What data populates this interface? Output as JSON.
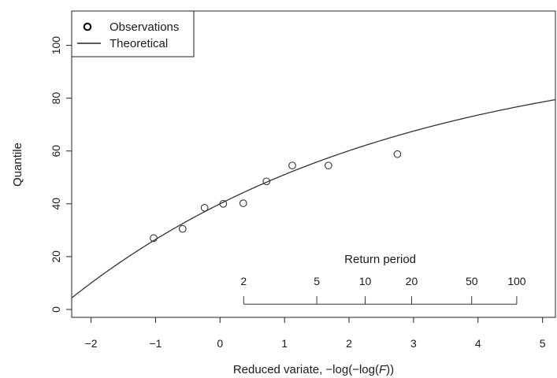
{
  "chart_data": {
    "type": "scatter",
    "xlabel_prefix": "Reduced variate,",
    "xlabel_math": "−log(−log(",
    "xlabel_var": "F",
    "xlabel_close": "))",
    "ylabel": "Quantile",
    "xlim": [
      -2.3,
      5.2
    ],
    "ylim": [
      -3,
      113
    ],
    "x_ticks": [
      -2,
      -1,
      0,
      1,
      2,
      3,
      4,
      5
    ],
    "x_tick_labels": [
      "−2",
      "−1",
      "0",
      "1",
      "2",
      "3",
      "4",
      "5"
    ],
    "y_ticks": [
      0,
      20,
      40,
      60,
      80,
      100
    ],
    "y_tick_labels": [
      "0",
      "20",
      "40",
      "60",
      "80",
      "100"
    ],
    "series": [
      {
        "name": "Observations",
        "kind": "points",
        "x": [
          -1.03,
          -0.58,
          -0.24,
          0.05,
          0.36,
          0.72,
          1.12,
          1.68,
          2.75
        ],
        "y": [
          27,
          30.5,
          38.5,
          40,
          40.2,
          48.5,
          54.5,
          54.5,
          58.8
        ]
      },
      {
        "name": "Theoretical",
        "kind": "curve",
        "model": "GEV quantile",
        "params": {
          "mu": 40.0,
          "sigma": 12.2,
          "xi": -0.2
        }
      }
    ],
    "legend": {
      "position": "top-left",
      "entries": [
        "Observations",
        "Theoretical"
      ]
    },
    "return_period": {
      "title": "Return period",
      "values": [
        2,
        5,
        10,
        20,
        50,
        100
      ],
      "labels": [
        "2",
        "5",
        "10",
        "20",
        "50",
        "100"
      ],
      "tick_label_y": 5,
      "axis_y": 2
    },
    "grid": false
  }
}
